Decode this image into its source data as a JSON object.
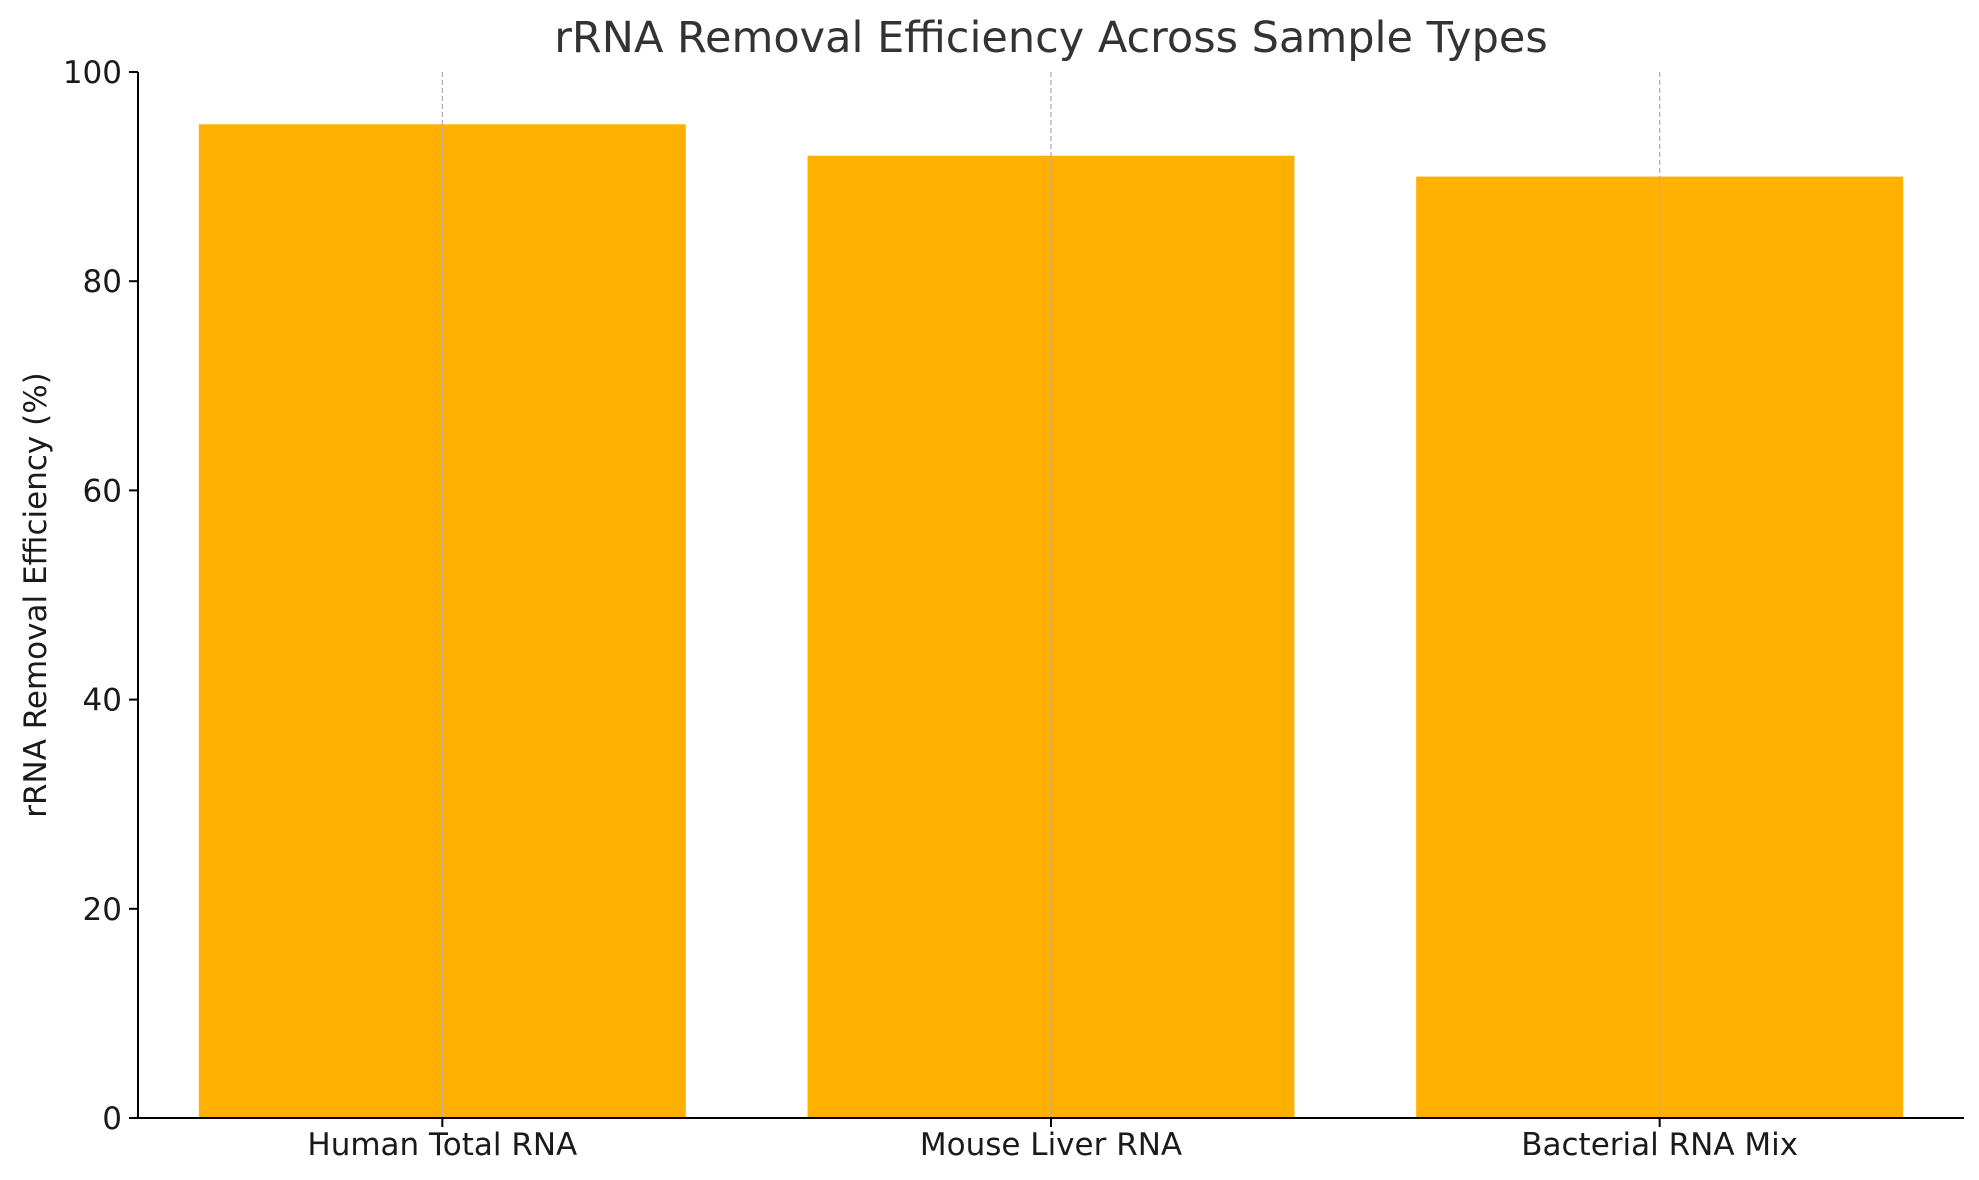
{
  "chart_data": {
    "type": "bar",
    "title": "rRNA Removal Efficiency Across Sample Types",
    "xlabel": "",
    "ylabel": "rRNA Removal Efficiency (%)",
    "categories": [
      "Human Total RNA",
      "Mouse Liver RNA",
      "Bacterial RNA Mix"
    ],
    "values": [
      95,
      92,
      90
    ],
    "ylim": [
      0,
      100
    ],
    "yticks": [
      0,
      20,
      40,
      60,
      80,
      100
    ],
    "ytick_labels": [
      "0",
      "20",
      "40",
      "60",
      "80",
      "100"
    ],
    "grid": "vertical dashed lines at category centers",
    "legend": "none",
    "colors": {
      "bar": "#FFB000",
      "grid": "#b0b0b0",
      "axis": "#000000",
      "title": "#333333",
      "text": "#1a1a1a"
    }
  }
}
